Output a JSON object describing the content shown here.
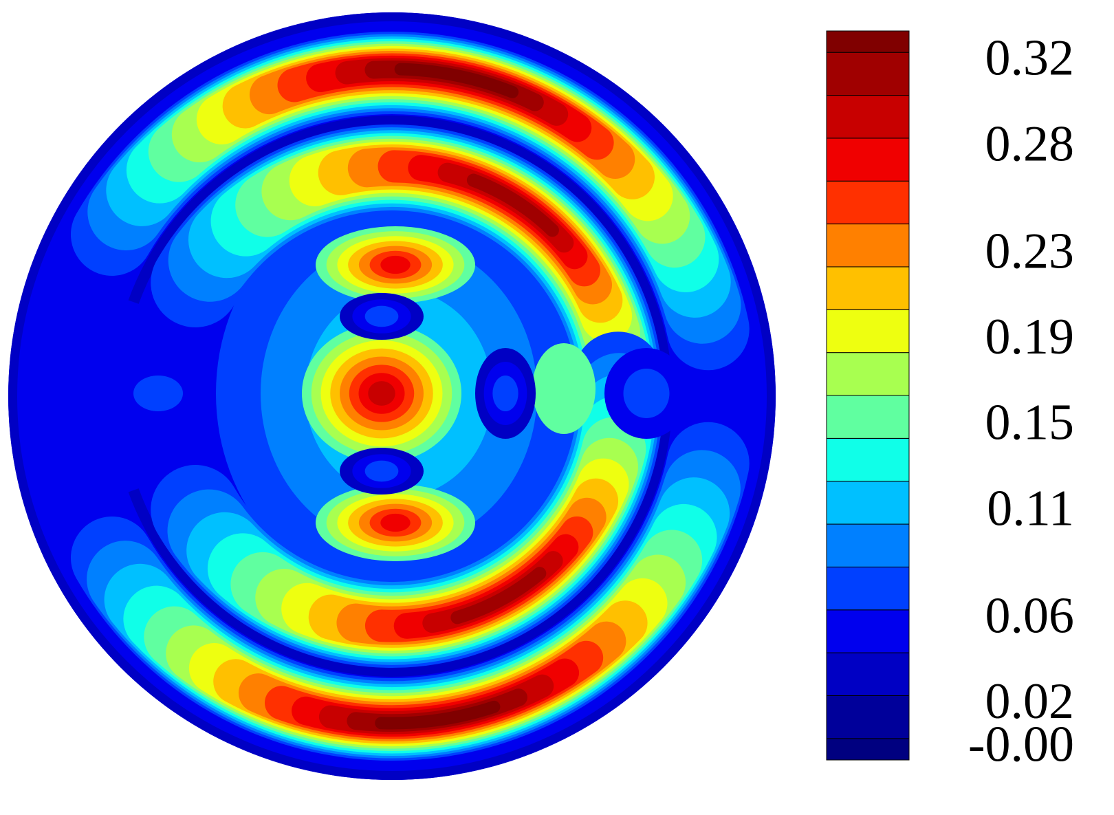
{
  "chart_data": {
    "type": "contour",
    "colorbar": {
      "levels": [
        -0.005,
        0.005,
        0.025,
        0.045,
        0.065,
        0.085,
        0.105,
        0.125,
        0.145,
        0.165,
        0.185,
        0.205,
        0.225,
        0.245,
        0.265,
        0.285,
        0.305,
        0.325,
        0.335
      ],
      "colors": [
        "#000080",
        "#00009a",
        "#0000c4",
        "#0000ee",
        "#0040ff",
        "#0080ff",
        "#00c0ff",
        "#10ffe8",
        "#60ffa0",
        "#a8ff50",
        "#eeff10",
        "#ffc000",
        "#ff8000",
        "#ff3000",
        "#f00000",
        "#c80000",
        "#a00000",
        "#800000"
      ],
      "ylim": [
        -0.005,
        0.335
      ],
      "yticks": [
        {
          "value": 0,
          "label": "-0.00"
        },
        0.02,
        0.06,
        0.11,
        0.15,
        0.19,
        0.23,
        0.28,
        0.32
      ]
    }
  }
}
